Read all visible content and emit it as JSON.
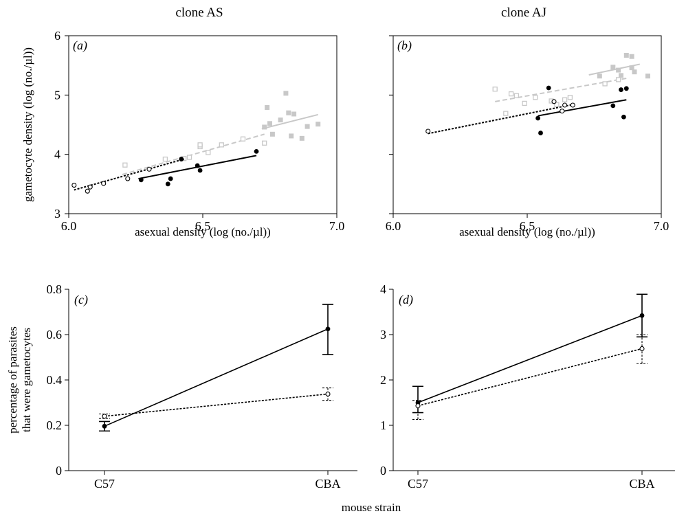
{
  "colors": {
    "black": "#000000",
    "grey": "#c8c8c8"
  },
  "common": {
    "xlabel_bottom": "mouse strain"
  },
  "chart_data": [
    {
      "panel": "a",
      "panel_label": "(a)",
      "type": "scatter",
      "title": "clone AS",
      "xlabel": "asexual density (log (no./µl))",
      "ylabel": "gametocyte density (log (no./µl))",
      "xlim": [
        6.0,
        7.0
      ],
      "ylim": [
        3,
        6
      ],
      "xticks": [
        "6.0",
        "6.5",
        "7.0"
      ],
      "yticks": [
        "3",
        "4",
        "5",
        "6"
      ],
      "series": [
        {
          "marker": "grey-square-filled",
          "points": [
            [
              6.73,
              4.46
            ],
            [
              6.74,
              4.79
            ],
            [
              6.75,
              4.52
            ],
            [
              6.76,
              4.34
            ],
            [
              6.79,
              4.58
            ],
            [
              6.81,
              5.03
            ],
            [
              6.82,
              4.7
            ],
            [
              6.83,
              4.31
            ],
            [
              6.84,
              4.68
            ],
            [
              6.87,
              4.27
            ],
            [
              6.89,
              4.47
            ],
            [
              6.93,
              4.51
            ]
          ],
          "fit": [
            [
              6.72,
              4.43
            ],
            [
              6.93,
              4.67
            ]
          ],
          "fit_style": "solid"
        },
        {
          "marker": "grey-square-open",
          "points": [
            [
              6.21,
              3.82
            ],
            [
              6.36,
              3.92
            ],
            [
              6.43,
              3.93
            ],
            [
              6.45,
              3.95
            ],
            [
              6.49,
              4.13
            ],
            [
              6.49,
              4.16
            ],
            [
              6.52,
              4.03
            ],
            [
              6.57,
              4.16
            ],
            [
              6.65,
              4.26
            ],
            [
              6.73,
              4.19
            ]
          ],
          "fit": [
            [
              6.2,
              3.66
            ],
            [
              6.73,
              4.34
            ]
          ],
          "fit_style": "dashed"
        },
        {
          "marker": "black-circle-filled",
          "points": [
            [
              6.27,
              3.57
            ],
            [
              6.37,
              3.5
            ],
            [
              6.38,
              3.59
            ],
            [
              6.42,
              3.92
            ],
            [
              6.48,
              3.81
            ],
            [
              6.49,
              3.73
            ],
            [
              6.7,
              4.05
            ]
          ],
          "fit": [
            [
              6.26,
              3.59
            ],
            [
              6.7,
              3.98
            ]
          ],
          "fit_style": "solid"
        },
        {
          "marker": "black-circle-open",
          "points": [
            [
              6.02,
              3.48
            ],
            [
              6.07,
              3.38
            ],
            [
              6.08,
              3.45
            ],
            [
              6.13,
              3.51
            ],
            [
              6.22,
              3.59
            ],
            [
              6.3,
              3.75
            ]
          ],
          "fit": [
            [
              6.02,
              3.4
            ],
            [
              6.43,
              3.92
            ]
          ],
          "fit_style": "dotted"
        }
      ]
    },
    {
      "panel": "b",
      "panel_label": "(b)",
      "type": "scatter",
      "title": "clone AJ",
      "xlabel": "asexual density (log (no./µl))",
      "ylabel": "",
      "xlim": [
        6.0,
        7.0
      ],
      "ylim": [
        3,
        6
      ],
      "xticks": [
        "6.0",
        "6.5",
        "7.0"
      ],
      "yticks": [],
      "series": [
        {
          "marker": "grey-square-filled",
          "points": [
            [
              6.77,
              5.32
            ],
            [
              6.82,
              5.47
            ],
            [
              6.84,
              5.42
            ],
            [
              6.85,
              5.33
            ],
            [
              6.87,
              5.67
            ],
            [
              6.89,
              5.65
            ],
            [
              6.89,
              5.46
            ],
            [
              6.9,
              5.39
            ],
            [
              6.95,
              5.32
            ]
          ],
          "fit": [
            [
              6.73,
              5.34
            ],
            [
              6.92,
              5.52
            ]
          ],
          "fit_style": "solid"
        },
        {
          "marker": "grey-square-open",
          "points": [
            [
              6.38,
              5.1
            ],
            [
              6.42,
              4.69
            ],
            [
              6.44,
              5.02
            ],
            [
              6.46,
              4.99
            ],
            [
              6.49,
              4.86
            ],
            [
              6.53,
              4.96
            ],
            [
              6.59,
              4.9
            ],
            [
              6.61,
              4.84
            ],
            [
              6.64,
              4.92
            ],
            [
              6.66,
              4.96
            ],
            [
              6.79,
              5.19
            ],
            [
              6.84,
              5.26
            ]
          ],
          "fit": [
            [
              6.38,
              4.89
            ],
            [
              6.88,
              5.29
            ]
          ],
          "fit_style": "dashed"
        },
        {
          "marker": "black-circle-filled",
          "points": [
            [
              6.54,
              4.61
            ],
            [
              6.55,
              4.36
            ],
            [
              6.58,
              5.12
            ],
            [
              6.82,
              4.82
            ],
            [
              6.85,
              5.09
            ],
            [
              6.86,
              4.63
            ],
            [
              6.87,
              5.11
            ]
          ],
          "fit": [
            [
              6.54,
              4.65
            ],
            [
              6.87,
              4.92
            ]
          ],
          "fit_style": "solid"
        },
        {
          "marker": "black-circle-open",
          "points": [
            [
              6.13,
              4.39
            ],
            [
              6.6,
              4.89
            ],
            [
              6.63,
              4.73
            ],
            [
              6.64,
              4.83
            ],
            [
              6.67,
              4.83
            ]
          ],
          "fit": [
            [
              6.13,
              4.35
            ],
            [
              6.67,
              4.84
            ]
          ],
          "fit_style": "dotted"
        }
      ]
    },
    {
      "panel": "c",
      "panel_label": "(c)",
      "type": "line",
      "title": "",
      "xlabel": "",
      "ylabel": "percentage of parasites",
      "ylabel2": "that were gametocytes",
      "categories": [
        "C57",
        "CBA"
      ],
      "ylim": [
        0,
        0.8
      ],
      "yticks": [
        "0",
        "0.2",
        "0.4",
        "0.6",
        "0.8"
      ],
      "series": [
        {
          "marker": "black-circle-filled",
          "style": "solid",
          "values": [
            0.196,
            0.625
          ],
          "err_low": [
            0.175,
            0.512
          ],
          "err_high": [
            0.217,
            0.733
          ]
        },
        {
          "marker": "black-circle-open",
          "style": "dotted",
          "values": [
            0.24,
            0.338
          ],
          "err_low": [
            0.23,
            0.31
          ],
          "err_high": [
            0.25,
            0.365
          ]
        }
      ]
    },
    {
      "panel": "d",
      "panel_label": "(d)",
      "type": "line",
      "title": "",
      "xlabel": "",
      "ylabel": "",
      "ylabel2": "",
      "categories": [
        "C57",
        "CBA"
      ],
      "ylim": [
        0,
        4
      ],
      "yticks": [
        "0",
        "1",
        "2",
        "3",
        "4"
      ],
      "series": [
        {
          "marker": "black-circle-filled",
          "style": "solid",
          "values": [
            1.5,
            3.42
          ],
          "err_low": [
            1.28,
            2.95
          ],
          "err_high": [
            1.86,
            3.89
          ]
        },
        {
          "marker": "black-circle-open",
          "style": "dotted",
          "values": [
            1.43,
            2.69
          ],
          "err_low": [
            1.13,
            2.36
          ],
          "err_high": [
            1.55,
            3.0
          ]
        }
      ]
    }
  ]
}
